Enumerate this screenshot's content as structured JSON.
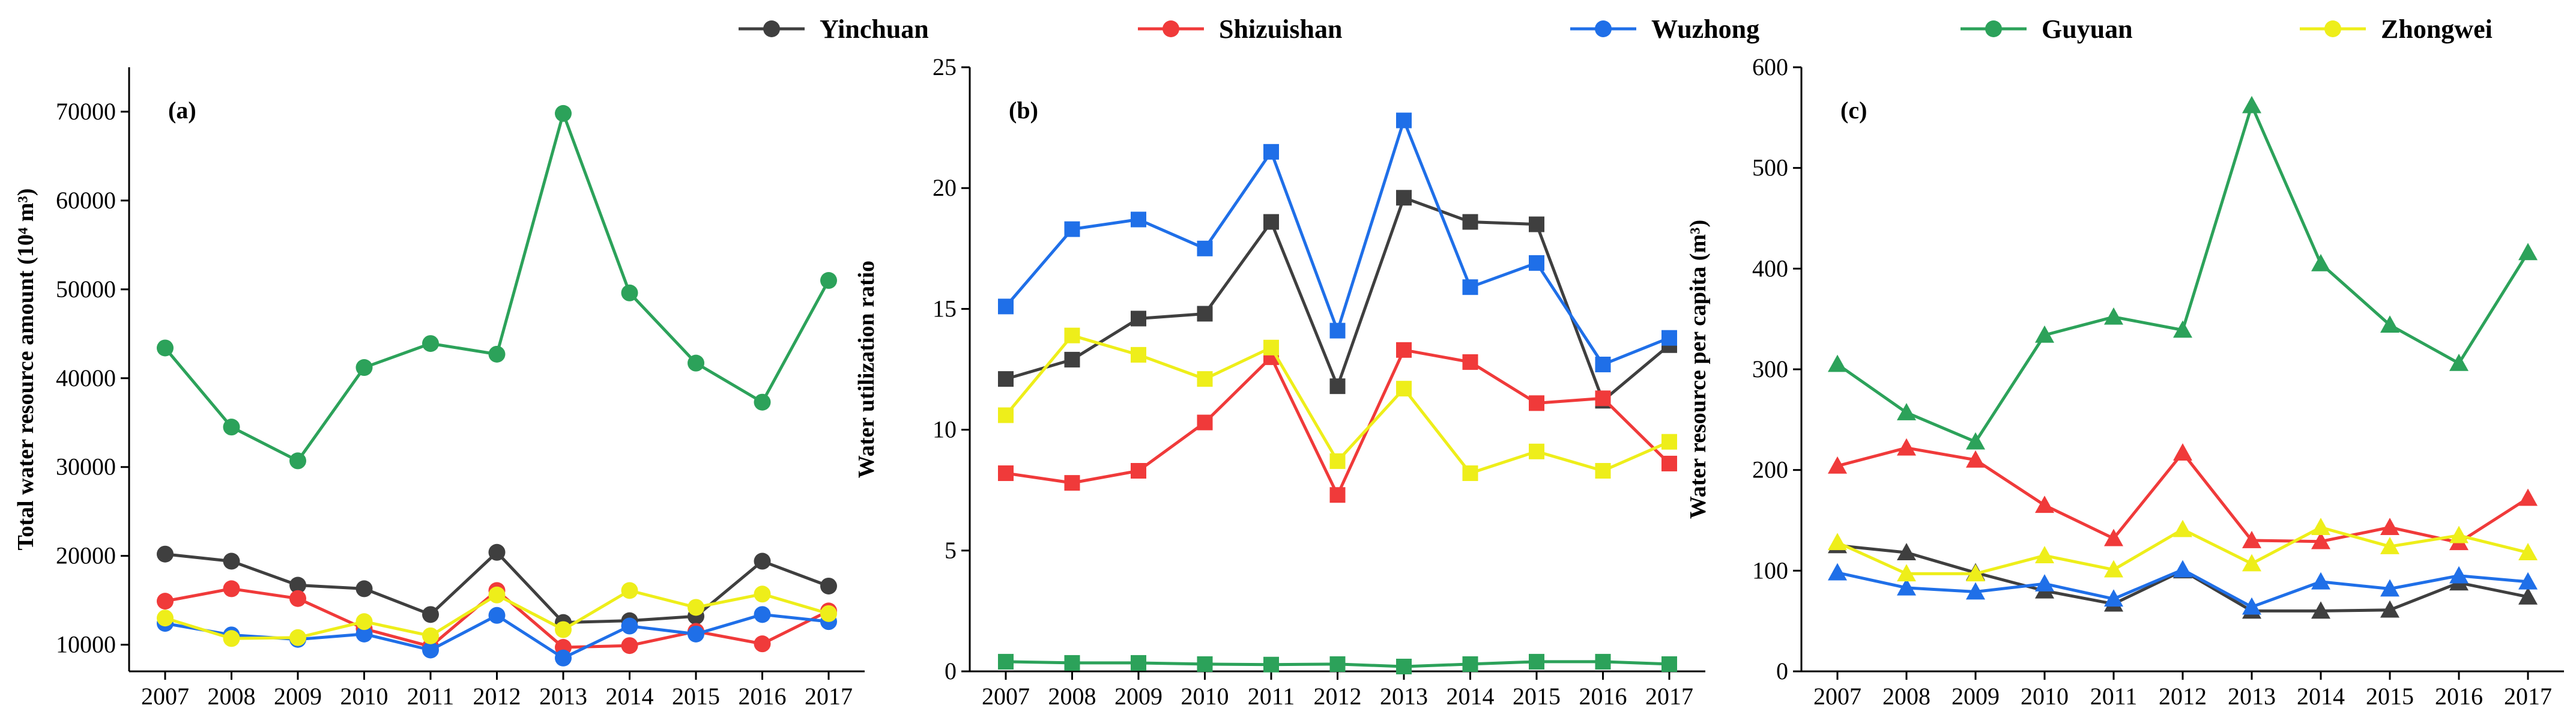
{
  "legend": [
    "Yinchuan",
    "Shizuishan",
    "Wuzhong",
    "Guyuan",
    "Zhongwei"
  ],
  "series_colors": {
    "Yinchuan": "#3f3f3f",
    "Shizuishan": "#f03a3a",
    "Wuzhong": "#1f6fe8",
    "Guyuan": "#2ca25a",
    "Zhongwei": "#eeee1a"
  },
  "chart_data": [
    {
      "type": "line",
      "panel": "(a)",
      "marker": "circle",
      "ylabel": "Total water resource amount (10⁴ m³)",
      "xlabel": "",
      "x": [
        "2007",
        "2008",
        "2009",
        "2010",
        "2011",
        "2012",
        "2013",
        "2014",
        "2015",
        "2016",
        "2017"
      ],
      "ylim": [
        7000,
        75000
      ],
      "yticks": [
        10000,
        20000,
        30000,
        40000,
        50000,
        60000,
        70000
      ],
      "series": [
        {
          "name": "Yinchuan",
          "values": [
            20200,
            19400,
            16700,
            16300,
            13400,
            20400,
            12500,
            12700,
            13200,
            19400,
            16600
          ]
        },
        {
          "name": "Shizuishan",
          "values": [
            14900,
            16300,
            15200,
            11800,
            9800,
            16100,
            9700,
            9900,
            11500,
            10100,
            13800
          ]
        },
        {
          "name": "Wuzhong",
          "values": [
            12400,
            11100,
            10600,
            11200,
            9400,
            13300,
            8500,
            12100,
            11200,
            13400,
            12600
          ]
        },
        {
          "name": "Guyuan",
          "values": [
            43400,
            34500,
            30700,
            41200,
            43900,
            42700,
            69800,
            49600,
            41700,
            37300,
            51000
          ]
        },
        {
          "name": "Zhongwei",
          "values": [
            13000,
            10700,
            10800,
            12600,
            11000,
            15600,
            11700,
            16100,
            14200,
            15700,
            13500
          ]
        }
      ]
    },
    {
      "type": "line",
      "panel": "(b)",
      "marker": "square",
      "ylabel": "Water utilization ratio",
      "xlabel": "",
      "x": [
        "2007",
        "2008",
        "2009",
        "2010",
        "2011",
        "2012",
        "2013",
        "2014",
        "2015",
        "2016",
        "2017"
      ],
      "ylim": [
        0,
        25
      ],
      "yticks": [
        0,
        5,
        10,
        15,
        20,
        25
      ],
      "series": [
        {
          "name": "Yinchuan",
          "values": [
            12.1,
            12.9,
            14.6,
            14.8,
            18.6,
            11.8,
            19.6,
            18.6,
            18.5,
            11.2,
            13.5
          ]
        },
        {
          "name": "Shizuishan",
          "values": [
            8.2,
            7.8,
            8.3,
            10.3,
            13.0,
            7.3,
            13.3,
            12.8,
            11.1,
            11.3,
            8.6
          ]
        },
        {
          "name": "Wuzhong",
          "values": [
            15.1,
            18.3,
            18.7,
            17.5,
            21.5,
            14.1,
            22.8,
            15.9,
            16.9,
            12.7,
            13.8
          ]
        },
        {
          "name": "Guyuan",
          "values": [
            0.4,
            0.35,
            0.35,
            0.3,
            0.28,
            0.3,
            0.2,
            0.3,
            0.4,
            0.4,
            0.3
          ]
        },
        {
          "name": "Zhongwei",
          "values": [
            10.6,
            13.9,
            13.1,
            12.1,
            13.4,
            8.7,
            11.7,
            8.2,
            9.1,
            8.3,
            9.5
          ]
        }
      ]
    },
    {
      "type": "line",
      "panel": "(c)",
      "marker": "triangle",
      "ylabel": "Water resource per capita (m³)",
      "xlabel": "",
      "x": [
        "2007",
        "2008",
        "2009",
        "2010",
        "2011",
        "2012",
        "2013",
        "2014",
        "2015",
        "2016",
        "2017"
      ],
      "ylim": [
        0,
        600
      ],
      "yticks": [
        0,
        100,
        200,
        300,
        400,
        500,
        600
      ],
      "series": [
        {
          "name": "Yinchuan",
          "values": [
            125,
            118,
            98,
            80,
            67,
            100,
            60,
            60,
            61,
            88,
            74
          ]
        },
        {
          "name": "Shizuishan",
          "values": [
            204,
            222,
            210,
            165,
            132,
            217,
            130,
            129,
            143,
            128,
            172
          ]
        },
        {
          "name": "Wuzhong",
          "values": [
            98,
            83,
            79,
            87,
            72,
            101,
            64,
            89,
            82,
            95,
            89
          ]
        },
        {
          "name": "Guyuan",
          "values": [
            305,
            257,
            228,
            334,
            352,
            339,
            562,
            405,
            344,
            306,
            416
          ]
        },
        {
          "name": "Zhongwei",
          "values": [
            128,
            97,
            97,
            115,
            101,
            141,
            107,
            143,
            124,
            135,
            118
          ]
        }
      ]
    }
  ]
}
